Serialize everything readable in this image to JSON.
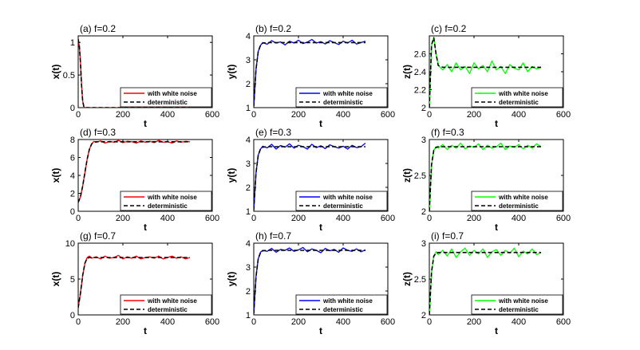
{
  "chart_data": [
    {
      "type": "line",
      "panel": "a",
      "title": "(a) f=0.2",
      "xlabel": "t",
      "ylabel": "x(t)",
      "xlim": [
        0,
        600
      ],
      "ylim": [
        0,
        1.1
      ],
      "xticks": [
        0,
        200,
        400,
        600
      ],
      "yticks": [
        0,
        0.5,
        1
      ],
      "ytick_labels": [
        "0",
        "0.5",
        "1"
      ],
      "series": [
        {
          "name": "with white noise",
          "color": "#ff0000",
          "style": "solid",
          "x": [
            0,
            5,
            10,
            15,
            20,
            25,
            30,
            40,
            500
          ],
          "y": [
            1.05,
            0.95,
            0.7,
            0.35,
            0.1,
            0.02,
            0,
            0,
            0
          ]
        },
        {
          "name": "deterministic",
          "color": "#000000",
          "style": "dashed",
          "x": [
            0,
            5,
            10,
            15,
            20,
            25,
            30,
            40,
            500
          ],
          "y": [
            1.05,
            0.95,
            0.7,
            0.35,
            0.1,
            0.02,
            0,
            0,
            0
          ]
        }
      ]
    },
    {
      "type": "line",
      "panel": "b",
      "title": "(b) f=0.2",
      "xlabel": "t",
      "ylabel": "y(t)",
      "xlim": [
        0,
        600
      ],
      "ylim": [
        1,
        4
      ],
      "xticks": [
        0,
        200,
        400,
        600
      ],
      "yticks": [
        1,
        2,
        3,
        4
      ],
      "ytick_labels": [
        "1",
        "2",
        "3",
        "4"
      ],
      "series": [
        {
          "name": "with white noise",
          "color": "#0000ff",
          "style": "solid",
          "x": [
            0,
            10,
            20,
            30,
            40,
            60,
            80,
            100,
            120,
            140,
            160,
            180,
            200,
            220,
            240,
            260,
            280,
            300,
            320,
            340,
            360,
            380,
            400,
            420,
            440,
            460,
            480,
            500
          ],
          "y": [
            1.05,
            2.6,
            3.35,
            3.6,
            3.72,
            3.65,
            3.8,
            3.7,
            3.75,
            3.62,
            3.78,
            3.7,
            3.82,
            3.68,
            3.74,
            3.85,
            3.7,
            3.76,
            3.66,
            3.8,
            3.72,
            3.64,
            3.78,
            3.7,
            3.82,
            3.66,
            3.72,
            3.78
          ]
        },
        {
          "name": "deterministic",
          "color": "#000000",
          "style": "dashed",
          "x": [
            0,
            10,
            20,
            30,
            40,
            60,
            500
          ],
          "y": [
            1.05,
            2.6,
            3.35,
            3.6,
            3.7,
            3.72,
            3.72
          ]
        }
      ]
    },
    {
      "type": "line",
      "panel": "c",
      "title": "(c) f=0.2",
      "xlabel": "t",
      "ylabel": "z(t)",
      "xlim": [
        0,
        600
      ],
      "ylim": [
        2,
        2.8
      ],
      "xticks": [
        0,
        200,
        400,
        600
      ],
      "yticks": [
        2,
        2.2,
        2.4,
        2.6
      ],
      "ytick_labels": [
        "2",
        "2.2",
        "2.4",
        "2.6"
      ],
      "series": [
        {
          "name": "with white noise",
          "color": "#00ff00",
          "style": "solid",
          "x": [
            0,
            10,
            20,
            30,
            40,
            60,
            80,
            100,
            120,
            140,
            160,
            180,
            200,
            220,
            240,
            260,
            280,
            300,
            320,
            340,
            360,
            380,
            400,
            420,
            440,
            460,
            480,
            500
          ],
          "y": [
            2.0,
            2.7,
            2.78,
            2.6,
            2.47,
            2.42,
            2.48,
            2.4,
            2.5,
            2.42,
            2.46,
            2.38,
            2.5,
            2.43,
            2.47,
            2.4,
            2.52,
            2.42,
            2.46,
            2.38,
            2.48,
            2.44,
            2.42,
            2.5,
            2.4,
            2.46,
            2.43,
            2.45
          ]
        },
        {
          "name": "deterministic",
          "color": "#000000",
          "style": "dashed",
          "x": [
            0,
            10,
            20,
            30,
            40,
            60,
            500
          ],
          "y": [
            2.0,
            2.7,
            2.78,
            2.6,
            2.47,
            2.45,
            2.45
          ]
        }
      ]
    },
    {
      "type": "line",
      "panel": "d",
      "title": "(d) f=0.3",
      "xlabel": "t",
      "ylabel": "x(t)",
      "xlim": [
        0,
        600
      ],
      "ylim": [
        0,
        8
      ],
      "xticks": [
        0,
        200,
        400,
        600
      ],
      "yticks": [
        0,
        2,
        4,
        6,
        8
      ],
      "ytick_labels": [
        "0",
        "2",
        "4",
        "6",
        "8"
      ],
      "series": [
        {
          "name": "with white noise",
          "color": "#ff0000",
          "style": "solid",
          "x": [
            0,
            10,
            20,
            30,
            40,
            50,
            60,
            70,
            80,
            100,
            120,
            140,
            160,
            180,
            200,
            220,
            240,
            260,
            280,
            300,
            320,
            340,
            360,
            380,
            400,
            420,
            440,
            460,
            480,
            500
          ],
          "y": [
            1.0,
            1.6,
            2.8,
            4.3,
            5.8,
            6.9,
            7.5,
            7.8,
            7.7,
            7.85,
            7.6,
            7.8,
            7.7,
            7.9,
            7.65,
            7.8,
            7.75,
            7.6,
            7.85,
            7.7,
            7.8,
            7.65,
            7.9,
            7.7,
            7.75,
            7.6,
            7.85,
            7.7,
            7.8,
            7.75
          ]
        },
        {
          "name": "deterministic",
          "color": "#000000",
          "style": "dashed",
          "x": [
            0,
            10,
            20,
            30,
            40,
            50,
            60,
            70,
            80,
            100,
            500
          ],
          "y": [
            1.0,
            1.6,
            2.8,
            4.3,
            5.8,
            6.9,
            7.5,
            7.7,
            7.75,
            7.75,
            7.75
          ]
        }
      ]
    },
    {
      "type": "line",
      "panel": "e",
      "title": "(e) f=0.3",
      "xlabel": "t",
      "ylabel": "y(t)",
      "xlim": [
        0,
        600
      ],
      "ylim": [
        1,
        4
      ],
      "xticks": [
        0,
        200,
        400,
        600
      ],
      "yticks": [
        1,
        2,
        3,
        4
      ],
      "ytick_labels": [
        "1",
        "2",
        "3",
        "4"
      ],
      "series": [
        {
          "name": "with white noise",
          "color": "#0000ff",
          "style": "solid",
          "x": [
            0,
            10,
            20,
            30,
            40,
            60,
            80,
            100,
            120,
            140,
            160,
            180,
            200,
            220,
            240,
            260,
            280,
            300,
            320,
            340,
            360,
            380,
            400,
            420,
            440,
            460,
            480,
            500
          ],
          "y": [
            1.05,
            2.6,
            3.35,
            3.6,
            3.72,
            3.65,
            3.8,
            3.6,
            3.75,
            3.68,
            3.82,
            3.64,
            3.76,
            3.7,
            3.6,
            3.8,
            3.66,
            3.74,
            3.62,
            3.78,
            3.7,
            3.64,
            3.72,
            3.6,
            3.76,
            3.66,
            3.7,
            3.85
          ]
        },
        {
          "name": "deterministic",
          "color": "#000000",
          "style": "dashed",
          "x": [
            0,
            10,
            20,
            30,
            40,
            60,
            500
          ],
          "y": [
            1.05,
            2.6,
            3.35,
            3.6,
            3.68,
            3.7,
            3.7
          ]
        }
      ]
    },
    {
      "type": "line",
      "panel": "f",
      "title": "(f) f=0.3",
      "xlabel": "t",
      "ylabel": "z(t)",
      "xlim": [
        0,
        600
      ],
      "ylim": [
        2,
        3
      ],
      "xticks": [
        0,
        200,
        400,
        600
      ],
      "yticks": [
        2,
        2.5,
        3
      ],
      "ytick_labels": [
        "2",
        "2.5",
        "3"
      ],
      "series": [
        {
          "name": "with white noise",
          "color": "#00ff00",
          "style": "solid",
          "x": [
            0,
            10,
            20,
            30,
            40,
            60,
            80,
            100,
            120,
            140,
            160,
            180,
            200,
            220,
            240,
            260,
            280,
            300,
            320,
            340,
            360,
            380,
            400,
            420,
            440,
            460,
            480,
            500
          ],
          "y": [
            2.0,
            2.65,
            2.85,
            2.9,
            2.88,
            2.93,
            2.86,
            2.92,
            2.88,
            2.95,
            2.87,
            2.91,
            2.89,
            2.94,
            2.86,
            2.92,
            2.88,
            2.9,
            2.95,
            2.86,
            2.91,
            2.89,
            2.93,
            2.87,
            2.92,
            2.88,
            2.94,
            2.9
          ]
        },
        {
          "name": "deterministic",
          "color": "#000000",
          "style": "dashed",
          "x": [
            0,
            10,
            20,
            30,
            40,
            60,
            500
          ],
          "y": [
            2.0,
            2.65,
            2.85,
            2.89,
            2.9,
            2.9,
            2.9
          ]
        }
      ]
    },
    {
      "type": "line",
      "panel": "g",
      "title": "(g) f=0.7",
      "xlabel": "t",
      "ylabel": "x(t)",
      "xlim": [
        0,
        600
      ],
      "ylim": [
        0,
        10
      ],
      "xticks": [
        0,
        200,
        400,
        600
      ],
      "yticks": [
        0,
        5,
        10
      ],
      "ytick_labels": [
        "0",
        "5",
        "10"
      ],
      "series": [
        {
          "name": "with white noise",
          "color": "#ff0000",
          "style": "solid",
          "x": [
            0,
            10,
            20,
            30,
            40,
            50,
            60,
            80,
            100,
            120,
            140,
            160,
            180,
            200,
            220,
            240,
            260,
            280,
            300,
            320,
            340,
            360,
            380,
            400,
            420,
            440,
            460,
            480,
            500
          ],
          "y": [
            1.0,
            3.0,
            5.5,
            7.2,
            8.0,
            8.2,
            7.9,
            8.1,
            7.8,
            8.2,
            7.9,
            8.0,
            8.3,
            7.8,
            8.1,
            7.9,
            8.2,
            7.8,
            8.0,
            8.1,
            7.9,
            8.2,
            7.8,
            8.0,
            8.2,
            7.9,
            8.1,
            7.8,
            8.0
          ]
        },
        {
          "name": "deterministic",
          "color": "#000000",
          "style": "dashed",
          "x": [
            0,
            10,
            20,
            30,
            40,
            50,
            60,
            500
          ],
          "y": [
            1.0,
            3.0,
            5.5,
            7.2,
            7.9,
            8.0,
            8.0,
            8.0
          ]
        }
      ]
    },
    {
      "type": "line",
      "panel": "h",
      "title": "(h) f=0.7",
      "xlabel": "t",
      "ylabel": "y(t)",
      "xlim": [
        0,
        600
      ],
      "ylim": [
        1,
        4
      ],
      "xticks": [
        0,
        200,
        400,
        600
      ],
      "yticks": [
        1,
        2,
        3,
        4
      ],
      "ytick_labels": [
        "1",
        "2",
        "3",
        "4"
      ],
      "series": [
        {
          "name": "with white noise",
          "color": "#0000ff",
          "style": "solid",
          "x": [
            0,
            10,
            20,
            30,
            40,
            60,
            80,
            100,
            120,
            140,
            160,
            180,
            200,
            220,
            240,
            260,
            280,
            300,
            320,
            340,
            360,
            380,
            400,
            420,
            440,
            460,
            480,
            500
          ],
          "y": [
            1.05,
            2.6,
            3.35,
            3.62,
            3.7,
            3.66,
            3.78,
            3.62,
            3.74,
            3.7,
            3.8,
            3.66,
            3.72,
            3.82,
            3.64,
            3.76,
            3.7,
            3.6,
            3.78,
            3.68,
            3.74,
            3.62,
            3.8,
            3.7,
            3.66,
            3.76,
            3.64,
            3.72
          ]
        },
        {
          "name": "deterministic",
          "color": "#000000",
          "style": "dashed",
          "x": [
            0,
            10,
            20,
            30,
            40,
            60,
            500
          ],
          "y": [
            1.05,
            2.6,
            3.35,
            3.6,
            3.68,
            3.7,
            3.7
          ]
        }
      ]
    },
    {
      "type": "line",
      "panel": "i",
      "title": "(i) f=0.7",
      "xlabel": "t",
      "ylabel": "z(t)",
      "xlim": [
        0,
        600
      ],
      "ylim": [
        2,
        3
      ],
      "xticks": [
        0,
        200,
        400,
        600
      ],
      "yticks": [
        2,
        2.5,
        3
      ],
      "ytick_labels": [
        "2",
        "2.5",
        "3"
      ],
      "series": [
        {
          "name": "with white noise",
          "color": "#00ff00",
          "style": "solid",
          "x": [
            0,
            10,
            20,
            30,
            40,
            60,
            80,
            100,
            120,
            140,
            160,
            180,
            200,
            220,
            240,
            260,
            280,
            300,
            320,
            340,
            360,
            380,
            400,
            420,
            440,
            460,
            480,
            500
          ],
          "y": [
            2.0,
            2.6,
            2.82,
            2.88,
            2.84,
            2.9,
            2.82,
            2.92,
            2.8,
            2.88,
            2.93,
            2.83,
            2.9,
            2.85,
            2.92,
            2.8,
            2.88,
            2.91,
            2.83,
            2.9,
            2.86,
            2.93,
            2.81,
            2.89,
            2.85,
            2.92,
            2.84,
            2.87
          ]
        },
        {
          "name": "deterministic",
          "color": "#000000",
          "style": "dashed",
          "x": [
            0,
            10,
            20,
            30,
            40,
            60,
            500
          ],
          "y": [
            2.0,
            2.6,
            2.82,
            2.86,
            2.87,
            2.87,
            2.87
          ]
        }
      ]
    }
  ]
}
